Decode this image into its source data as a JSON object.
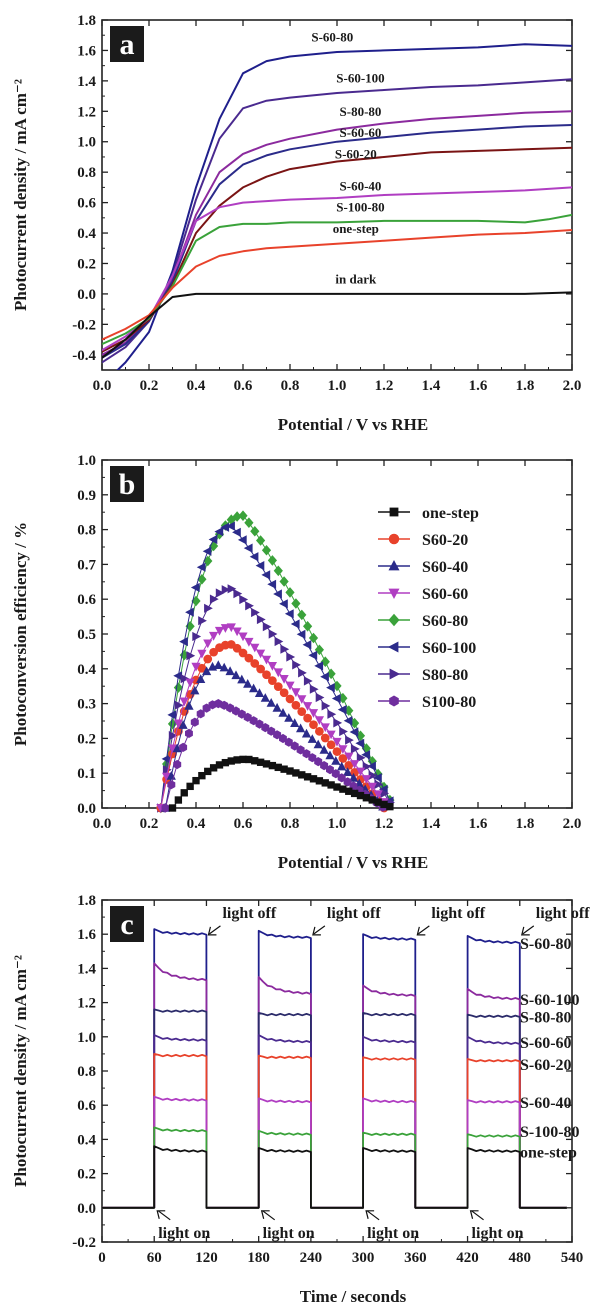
{
  "colors": {
    "black": "#111111",
    "red": "#e8422b",
    "green": "#3aa23a",
    "violet": "#b03ec2",
    "purple": "#6f2e9e",
    "maroon": "#7a1414",
    "navy": "#1f1f8c",
    "indigo": "#3b1f7a"
  },
  "chart_data": [
    {
      "id": "a",
      "type": "line",
      "panel_label": "a",
      "xlabel": "Potential / V vs RHE",
      "ylabel": "Photocurrent density / mA cm⁻²",
      "xlim": [
        0.0,
        2.0
      ],
      "ylim": [
        -0.5,
        1.8
      ],
      "xticks": [
        0.0,
        0.2,
        0.4,
        0.6,
        0.8,
        1.0,
        1.2,
        1.4,
        1.6,
        1.8,
        2.0
      ],
      "xtick_labels": [
        "0.0",
        "0.2",
        "0.4",
        "0.6",
        "0.8",
        "1.0",
        "1.2",
        "1.4",
        "1.6",
        "1.8",
        "2.0"
      ],
      "yticks": [
        -0.4,
        -0.2,
        0.0,
        0.2,
        0.4,
        0.6,
        0.8,
        1.0,
        1.2,
        1.4,
        1.6,
        1.8
      ],
      "ytick_labels": [
        "-0.4",
        "-0.2",
        "0.0",
        "0.2",
        "0.4",
        "0.6",
        "0.8",
        "1.0",
        "1.2",
        "1.4",
        "1.6",
        "1.8"
      ],
      "grid": false,
      "series": [
        {
          "name": "S-60-80",
          "color": "#1f1f8c",
          "label_at": [
            0.98,
            1.66
          ],
          "x": [
            0.0,
            0.1,
            0.2,
            0.3,
            0.4,
            0.5,
            0.6,
            0.7,
            0.8,
            1.0,
            1.2,
            1.4,
            1.6,
            1.8,
            2.0
          ],
          "y": [
            -0.6,
            -0.45,
            -0.25,
            0.15,
            0.7,
            1.15,
            1.45,
            1.53,
            1.56,
            1.59,
            1.6,
            1.61,
            1.62,
            1.64,
            1.63
          ]
        },
        {
          "name": "S-60-100",
          "color": "#4a2a8f",
          "label_at": [
            1.1,
            1.39
          ],
          "x": [
            0.0,
            0.1,
            0.2,
            0.3,
            0.4,
            0.5,
            0.6,
            0.7,
            0.8,
            1.0,
            1.2,
            1.4,
            1.6,
            1.8,
            2.0
          ],
          "y": [
            -0.45,
            -0.35,
            -0.18,
            0.12,
            0.62,
            1.02,
            1.22,
            1.27,
            1.29,
            1.32,
            1.34,
            1.36,
            1.37,
            1.39,
            1.41
          ]
        },
        {
          "name": "S-80-80",
          "color": "#8b2a9e",
          "label_at": [
            1.1,
            1.17
          ],
          "x": [
            0.0,
            0.1,
            0.2,
            0.3,
            0.4,
            0.5,
            0.6,
            0.7,
            0.8,
            1.0,
            1.2,
            1.4,
            1.6,
            1.8,
            2.0
          ],
          "y": [
            -0.4,
            -0.32,
            -0.17,
            0.1,
            0.52,
            0.8,
            0.92,
            0.98,
            1.02,
            1.08,
            1.12,
            1.15,
            1.17,
            1.19,
            1.2
          ]
        },
        {
          "name": "S-60-60",
          "color": "#2b2b8a",
          "label_at": [
            1.1,
            1.03
          ],
          "x": [
            0.0,
            0.1,
            0.2,
            0.3,
            0.4,
            0.5,
            0.6,
            0.7,
            0.8,
            1.0,
            1.2,
            1.4,
            1.6,
            1.8,
            2.0
          ],
          "y": [
            -0.42,
            -0.33,
            -0.18,
            0.08,
            0.48,
            0.72,
            0.85,
            0.91,
            0.95,
            1.0,
            1.03,
            1.06,
            1.08,
            1.1,
            1.11
          ]
        },
        {
          "name": "S-60-20",
          "color": "#7a1414",
          "label_at": [
            1.08,
            0.89
          ],
          "x": [
            0.0,
            0.1,
            0.2,
            0.3,
            0.4,
            0.5,
            0.6,
            0.7,
            0.8,
            1.0,
            1.2,
            1.4,
            1.6,
            1.8,
            2.0
          ],
          "y": [
            -0.38,
            -0.3,
            -0.17,
            0.06,
            0.4,
            0.58,
            0.7,
            0.77,
            0.82,
            0.87,
            0.9,
            0.93,
            0.94,
            0.95,
            0.96
          ]
        },
        {
          "name": "S-60-40",
          "color": "#b03ec2",
          "label_at": [
            1.1,
            0.68
          ],
          "x": [
            0.0,
            0.1,
            0.2,
            0.3,
            0.4,
            0.5,
            0.6,
            0.7,
            0.8,
            1.0,
            1.2,
            1.4,
            1.6,
            1.8,
            2.0
          ],
          "y": [
            -0.37,
            -0.28,
            -0.16,
            0.12,
            0.48,
            0.57,
            0.6,
            0.61,
            0.62,
            0.63,
            0.65,
            0.66,
            0.67,
            0.68,
            0.7
          ]
        },
        {
          "name": "S-100-80",
          "color": "#3aa23a",
          "label_at": [
            1.1,
            0.54
          ],
          "x": [
            0.0,
            0.1,
            0.2,
            0.3,
            0.4,
            0.5,
            0.6,
            0.7,
            0.8,
            1.0,
            1.2,
            1.4,
            1.6,
            1.8,
            1.9,
            2.0
          ],
          "y": [
            -0.33,
            -0.26,
            -0.16,
            0.05,
            0.35,
            0.44,
            0.46,
            0.46,
            0.47,
            0.47,
            0.48,
            0.48,
            0.48,
            0.47,
            0.49,
            0.52
          ]
        },
        {
          "name": "one-step",
          "color": "#e8422b",
          "label_at": [
            1.08,
            0.4
          ],
          "x": [
            0.0,
            0.1,
            0.2,
            0.3,
            0.4,
            0.5,
            0.6,
            0.7,
            0.8,
            1.0,
            1.2,
            1.4,
            1.6,
            1.8,
            2.0
          ],
          "y": [
            -0.3,
            -0.23,
            -0.14,
            0.04,
            0.18,
            0.25,
            0.28,
            0.3,
            0.31,
            0.33,
            0.35,
            0.37,
            0.39,
            0.4,
            0.42
          ]
        },
        {
          "name": "in dark",
          "color": "#111111",
          "label_at": [
            1.08,
            0.07
          ],
          "x": [
            0.0,
            0.1,
            0.2,
            0.3,
            0.4,
            0.6,
            0.8,
            1.0,
            1.4,
            1.8,
            2.0
          ],
          "y": [
            -0.42,
            -0.3,
            -0.15,
            -0.02,
            0.0,
            0.0,
            0.0,
            0.0,
            0.0,
            0.0,
            0.01
          ]
        }
      ]
    },
    {
      "id": "b",
      "type": "scatter",
      "panel_label": "b",
      "xlabel": "Potential / V vs RHE",
      "ylabel": "Photoconversion efficiency / %",
      "xlim": [
        0.0,
        2.0
      ],
      "ylim": [
        0.0,
        1.0
      ],
      "xticks": [
        0.0,
        0.2,
        0.4,
        0.6,
        0.8,
        1.0,
        1.2,
        1.4,
        1.6,
        1.8,
        2.0
      ],
      "xtick_labels": [
        "0.0",
        "0.2",
        "0.4",
        "0.6",
        "0.8",
        "1.0",
        "1.2",
        "1.4",
        "1.6",
        "1.8",
        "2.0"
      ],
      "yticks": [
        0.0,
        0.1,
        0.2,
        0.3,
        0.4,
        0.5,
        0.6,
        0.7,
        0.8,
        0.9,
        1.0
      ],
      "ytick_labels": [
        "0.0",
        "0.1",
        "0.2",
        "0.3",
        "0.4",
        "0.5",
        "0.6",
        "0.7",
        "0.8",
        "0.9",
        "1.0"
      ],
      "grid": false,
      "legend_position": "top-right",
      "series": [
        {
          "name": "one-step",
          "color": "#111111",
          "marker": "square",
          "x0": 0.3,
          "x1": 1.24,
          "peak_x": 0.62,
          "peak_y": 0.14
        },
        {
          "name": "S60-20",
          "color": "#e8422b",
          "marker": "circle",
          "x0": 0.25,
          "x1": 1.2,
          "peak_x": 0.55,
          "peak_y": 0.47
        },
        {
          "name": "S60-40",
          "color": "#2b2b8a",
          "marker": "triangle-up",
          "x0": 0.27,
          "x1": 1.2,
          "peak_x": 0.5,
          "peak_y": 0.41
        },
        {
          "name": "S60-60",
          "color": "#b03ec2",
          "marker": "triangle-down",
          "x0": 0.25,
          "x1": 1.22,
          "peak_x": 0.55,
          "peak_y": 0.52
        },
        {
          "name": "S60-80",
          "color": "#3aa23a",
          "marker": "diamond",
          "x0": 0.25,
          "x1": 1.24,
          "peak_x": 0.6,
          "peak_y": 0.84
        },
        {
          "name": "S60-100",
          "color": "#2b2b8a",
          "marker": "triangle-left",
          "x0": 0.25,
          "x1": 1.24,
          "peak_x": 0.55,
          "peak_y": 0.81
        },
        {
          "name": "S80-80",
          "color": "#4a2a8f",
          "marker": "triangle-right",
          "x0": 0.25,
          "x1": 1.24,
          "peak_x": 0.55,
          "peak_y": 0.63
        },
        {
          "name": "S100-80",
          "color": "#6f2e9e",
          "marker": "hexagon",
          "x0": 0.27,
          "x1": 1.2,
          "peak_x": 0.5,
          "peak_y": 0.3
        }
      ]
    },
    {
      "id": "c",
      "type": "line",
      "panel_label": "c",
      "xlabel": "Time / seconds",
      "ylabel": "Photocurrent density / mA cm⁻²",
      "xlim": [
        0,
        540
      ],
      "ylim": [
        -0.2,
        1.8
      ],
      "xticks": [
        0,
        60,
        120,
        180,
        240,
        300,
        360,
        420,
        480,
        540
      ],
      "xtick_labels": [
        "0",
        "60",
        "120",
        "180",
        "240",
        "300",
        "360",
        "420",
        "480",
        "540"
      ],
      "yticks": [
        -0.2,
        0.0,
        0.2,
        0.4,
        0.6,
        0.8,
        1.0,
        1.2,
        1.4,
        1.6,
        1.8
      ],
      "ytick_labels": [
        "-0.2",
        "0.0",
        "0.2",
        "0.4",
        "0.6",
        "0.8",
        "1.0",
        "1.2",
        "1.4",
        "1.6",
        "1.8"
      ],
      "grid": false,
      "light_on_times": [
        60,
        180,
        300,
        420
      ],
      "light_off_times": [
        120,
        240,
        360,
        480
      ],
      "light_on_label": "light on",
      "light_off_label": "light off",
      "series": [
        {
          "name": "S-60-80",
          "color": "#1f1f8c",
          "label_y": 1.55,
          "start": [
            1.62,
            1.61,
            1.59,
            1.58
          ],
          "end": [
            1.6,
            1.58,
            1.57,
            1.55
          ]
        },
        {
          "name": "S-60-100",
          "color": "#8b2a9e",
          "label_y": 1.22,
          "start": [
            1.42,
            1.34,
            1.29,
            1.27
          ],
          "end": [
            1.33,
            1.25,
            1.24,
            1.22
          ]
        },
        {
          "name": "S-80-80",
          "color": "#2b2b6a",
          "label_y": 1.12,
          "start": [
            1.15,
            1.13,
            1.13,
            1.12
          ],
          "end": [
            1.15,
            1.13,
            1.13,
            1.12
          ]
        },
        {
          "name": "S-60-60",
          "color": "#4a2a8f",
          "label_y": 0.97,
          "start": [
            1.0,
            1.0,
            0.99,
            0.99
          ],
          "end": [
            0.98,
            0.97,
            0.97,
            0.96
          ]
        },
        {
          "name": "S-60-20",
          "color": "#e8422b",
          "label_y": 0.84,
          "start": [
            0.89,
            0.88,
            0.87,
            0.86
          ],
          "end": [
            0.89,
            0.88,
            0.87,
            0.86
          ]
        },
        {
          "name": "S-60-40",
          "color": "#b03ec2",
          "label_y": 0.62,
          "start": [
            0.64,
            0.63,
            0.63,
            0.62
          ],
          "end": [
            0.63,
            0.62,
            0.62,
            0.62
          ]
        },
        {
          "name": "S-100-80",
          "color": "#3aa23a",
          "label_y": 0.45,
          "start": [
            0.46,
            0.44,
            0.43,
            0.42
          ],
          "end": [
            0.45,
            0.43,
            0.43,
            0.42
          ]
        },
        {
          "name": "one-step",
          "color": "#111111",
          "label_y": 0.33,
          "start": [
            0.35,
            0.34,
            0.34,
            0.34
          ],
          "end": [
            0.33,
            0.33,
            0.33,
            0.33
          ]
        }
      ]
    }
  ]
}
